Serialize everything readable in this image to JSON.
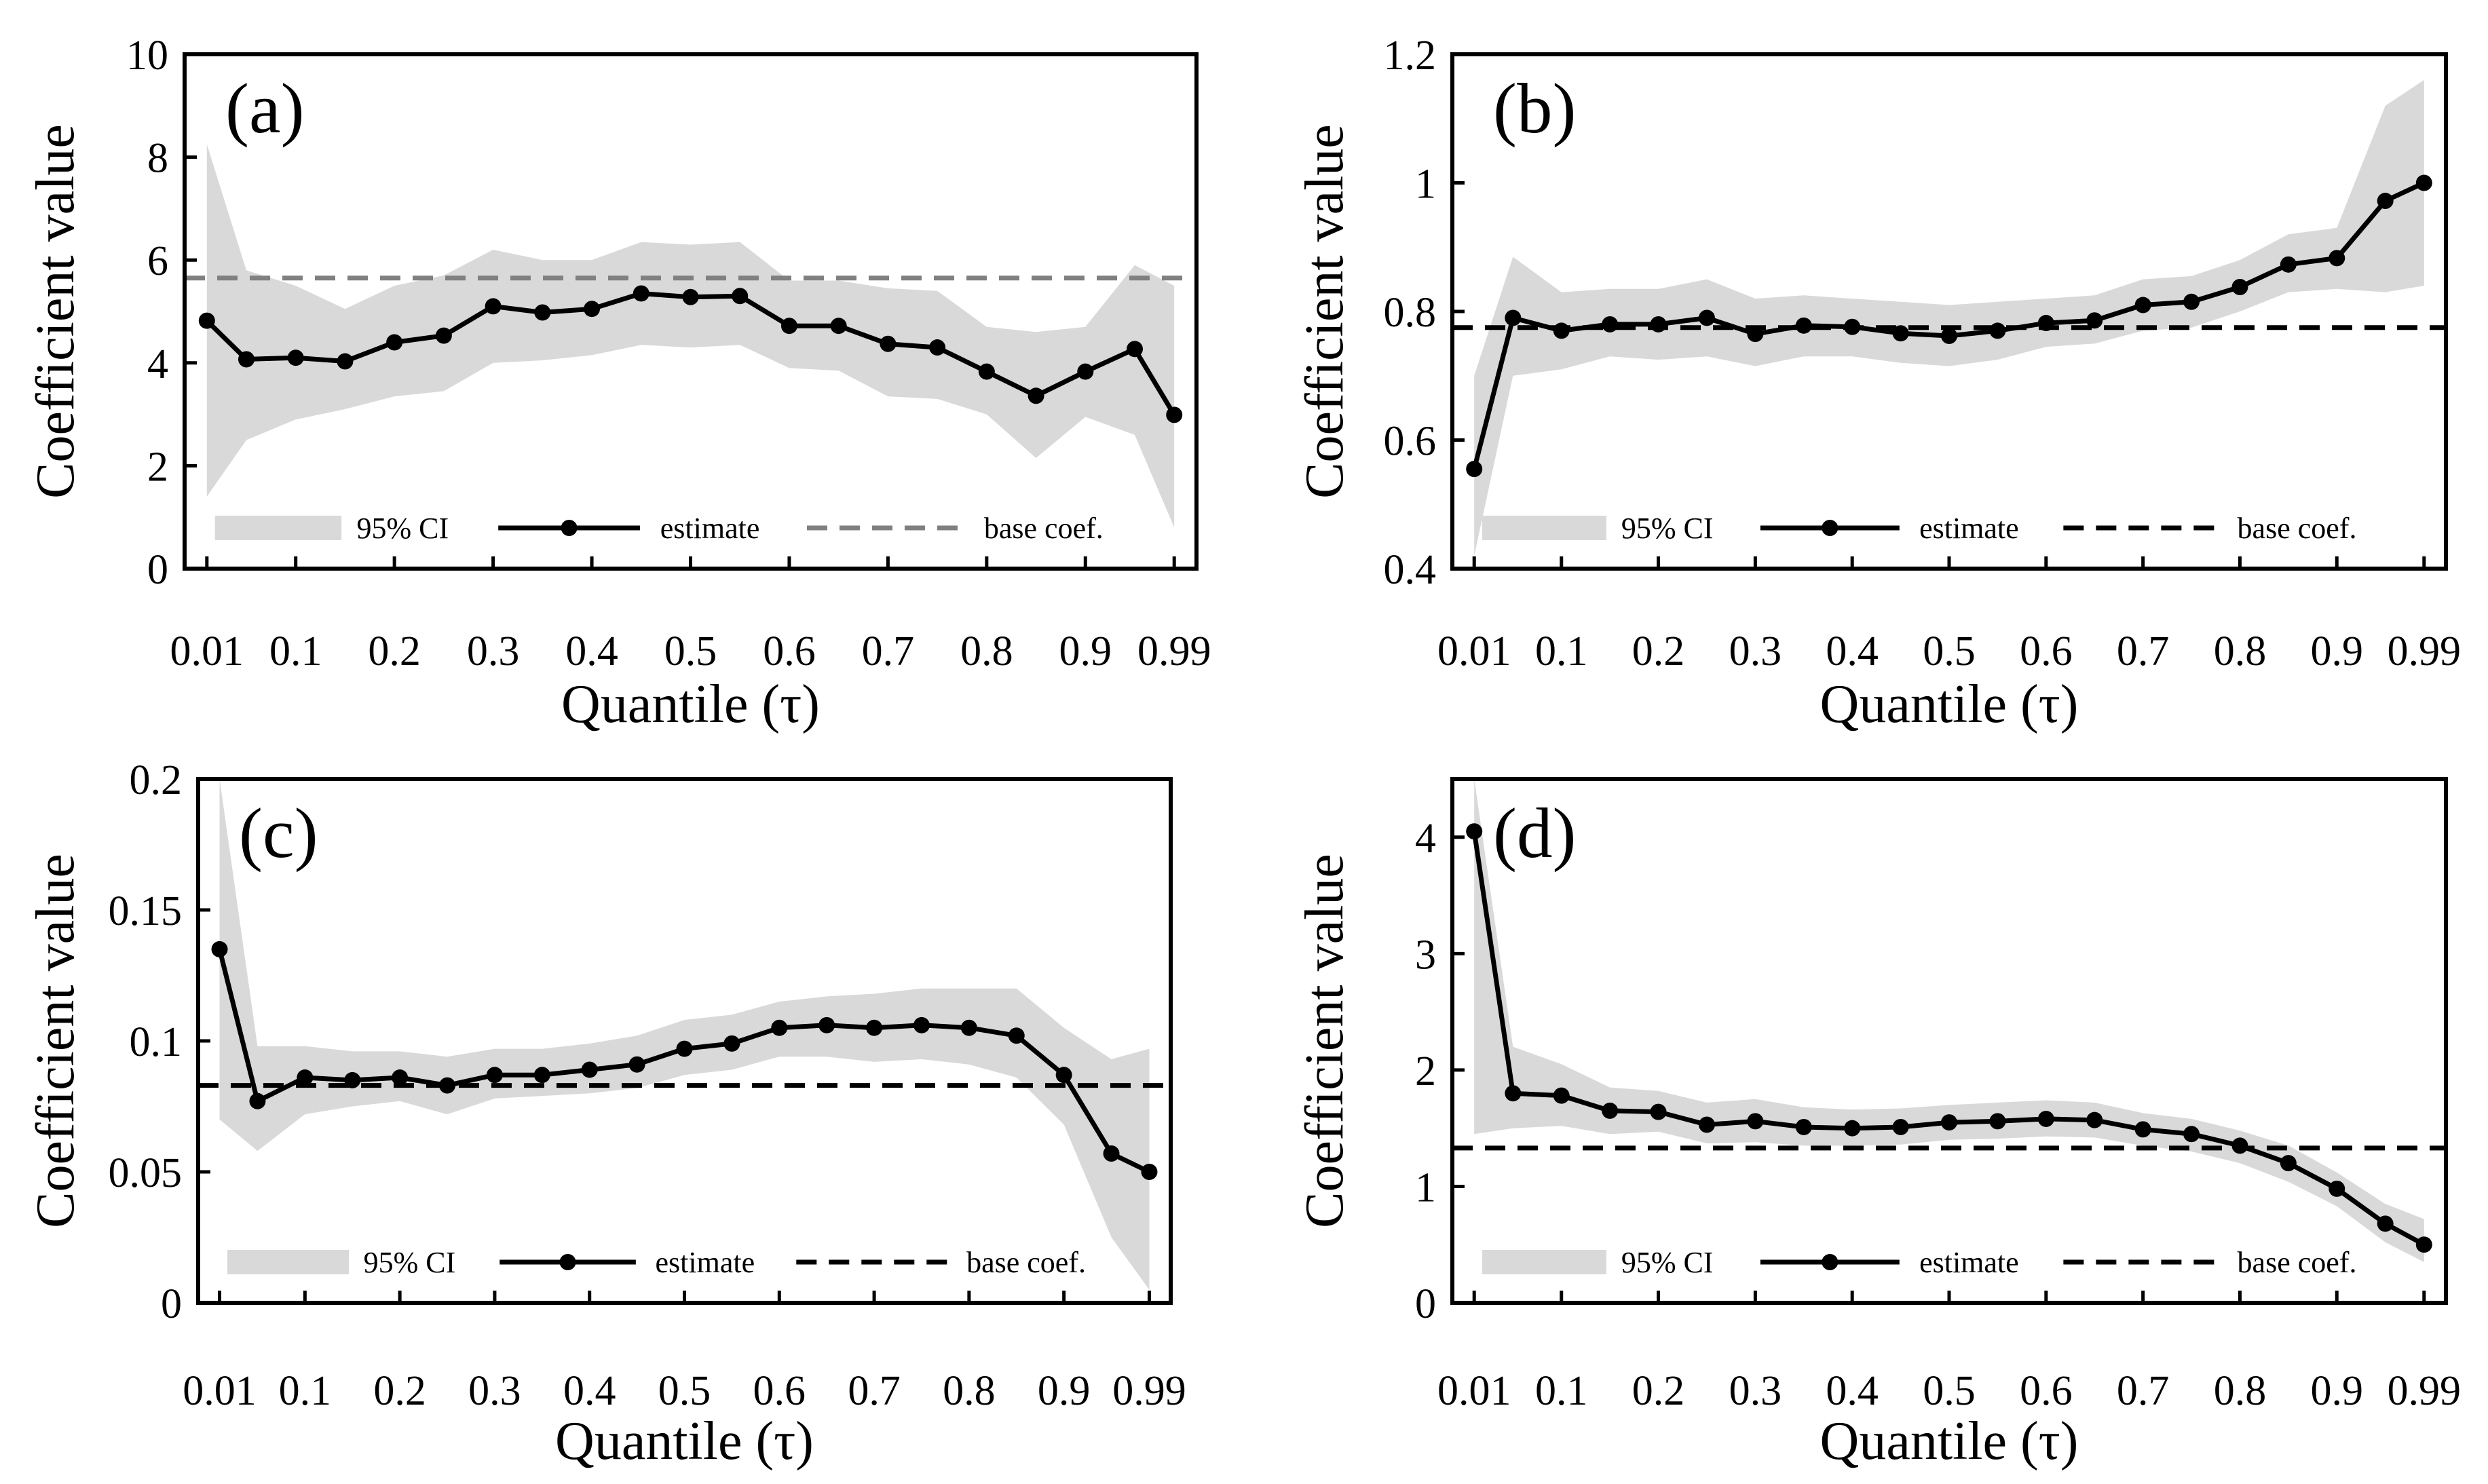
{
  "colors": {
    "ci_band": "#d9d9d9",
    "estimate": "#000000",
    "base_black": "#000000",
    "base_grey": "#808080"
  },
  "chart_data": [
    {
      "type": "line",
      "panel_label": "(a)",
      "ylabel": "Coefficient value",
      "xlabel": "Quantile (τ)",
      "x": [
        0.01,
        0.05,
        0.1,
        0.15,
        0.2,
        0.25,
        0.3,
        0.35,
        0.4,
        0.45,
        0.5,
        0.55,
        0.6,
        0.65,
        0.7,
        0.75,
        0.8,
        0.85,
        0.9,
        0.95,
        0.99
      ],
      "x_ticks": [
        0.01,
        0.1,
        0.2,
        0.3,
        0.4,
        0.5,
        0.6,
        0.7,
        0.8,
        0.9,
        0.99
      ],
      "x_tick_labels": [
        "0.01",
        "0.1",
        "0.2",
        "0.3",
        "0.4",
        "0.5",
        "0.6",
        "0.7",
        "0.8",
        "0.9",
        "0.99"
      ],
      "ylim": [
        0,
        10
      ],
      "y_ticks": [
        0,
        2,
        4,
        6,
        8,
        10
      ],
      "y_tick_labels": [
        "0",
        "2",
        "4",
        "6",
        "8",
        "10"
      ],
      "estimate": [
        4.82,
        4.07,
        4.1,
        4.03,
        4.4,
        4.53,
        5.1,
        4.98,
        5.05,
        5.35,
        5.28,
        5.3,
        4.72,
        4.72,
        4.37,
        4.3,
        3.83,
        3.36,
        3.83,
        4.27,
        2.99
      ],
      "ci_upper": [
        8.25,
        5.8,
        5.5,
        5.05,
        5.5,
        5.7,
        6.2,
        6.0,
        6.0,
        6.35,
        6.3,
        6.35,
        5.6,
        5.6,
        5.45,
        5.4,
        4.7,
        4.6,
        4.7,
        5.9,
        5.5
      ],
      "ci_lower": [
        1.4,
        2.5,
        2.9,
        3.1,
        3.35,
        3.45,
        4.0,
        4.05,
        4.15,
        4.35,
        4.3,
        4.35,
        3.9,
        3.85,
        3.35,
        3.3,
        3.0,
        2.15,
        2.95,
        2.6,
        0.8
      ],
      "base_coef": 5.65,
      "base_line_style": "grey",
      "legend": {
        "ci": "95% CI",
        "estimate": "estimate",
        "base": "base coef."
      }
    },
    {
      "type": "line",
      "panel_label": "(b)",
      "ylabel": "Coefficient value",
      "xlabel": "Quantile (τ)",
      "x": [
        0.01,
        0.05,
        0.1,
        0.15,
        0.2,
        0.25,
        0.3,
        0.35,
        0.4,
        0.45,
        0.5,
        0.55,
        0.6,
        0.65,
        0.7,
        0.75,
        0.8,
        0.85,
        0.9,
        0.95,
        0.99
      ],
      "x_ticks": [
        0.01,
        0.1,
        0.2,
        0.3,
        0.4,
        0.5,
        0.6,
        0.7,
        0.8,
        0.9,
        0.99
      ],
      "x_tick_labels": [
        "0.01",
        "0.1",
        "0.2",
        "0.3",
        "0.4",
        "0.5",
        "0.6",
        "0.7",
        "0.8",
        "0.9",
        "0.99"
      ],
      "ylim": [
        0.4,
        1.2
      ],
      "y_ticks": [
        0.4,
        0.6,
        0.8,
        1.0,
        1.2
      ],
      "y_tick_labels": [
        "0.4",
        "0.6",
        "0.8",
        "1",
        "1.2"
      ],
      "estimate": [
        0.555,
        0.79,
        0.77,
        0.78,
        0.78,
        0.79,
        0.765,
        0.778,
        0.776,
        0.766,
        0.762,
        0.77,
        0.782,
        0.786,
        0.81,
        0.815,
        0.838,
        0.873,
        0.883,
        0.972,
        1.0
      ],
      "ci_upper": [
        0.7,
        0.885,
        0.83,
        0.835,
        0.835,
        0.85,
        0.82,
        0.825,
        0.82,
        0.815,
        0.81,
        0.815,
        0.82,
        0.825,
        0.85,
        0.855,
        0.88,
        0.92,
        0.93,
        1.12,
        1.16
      ],
      "ci_lower": [
        0.42,
        0.7,
        0.71,
        0.73,
        0.725,
        0.73,
        0.715,
        0.73,
        0.73,
        0.72,
        0.715,
        0.725,
        0.745,
        0.75,
        0.77,
        0.775,
        0.8,
        0.83,
        0.835,
        0.83,
        0.84
      ],
      "base_coef": 0.775,
      "base_line_style": "black",
      "legend": {
        "ci": "95% CI",
        "estimate": "estimate",
        "base": "base coef."
      }
    },
    {
      "type": "line",
      "panel_label": "(c)",
      "ylabel": "Coefficient value",
      "xlabel": "Quantile (τ)",
      "x": [
        0.01,
        0.05,
        0.1,
        0.15,
        0.2,
        0.25,
        0.3,
        0.35,
        0.4,
        0.45,
        0.5,
        0.55,
        0.6,
        0.65,
        0.7,
        0.75,
        0.8,
        0.85,
        0.9,
        0.95,
        0.99
      ],
      "x_ticks": [
        0.01,
        0.1,
        0.2,
        0.3,
        0.4,
        0.5,
        0.6,
        0.7,
        0.8,
        0.9,
        0.99
      ],
      "x_tick_labels": [
        "0.01",
        "0.1",
        "0.2",
        "0.3",
        "0.4",
        "0.5",
        "0.6",
        "0.7",
        "0.8",
        "0.9",
        "0.99"
      ],
      "ylim": [
        0,
        0.2
      ],
      "y_ticks": [
        0,
        0.05,
        0.1,
        0.15,
        0.2
      ],
      "y_tick_labels": [
        "0",
        "0.05",
        "0.1",
        "0.15",
        "0.2"
      ],
      "estimate": [
        0.135,
        0.077,
        0.086,
        0.085,
        0.086,
        0.083,
        0.087,
        0.087,
        0.089,
        0.091,
        0.097,
        0.099,
        0.105,
        0.106,
        0.105,
        0.106,
        0.105,
        0.102,
        0.087,
        0.057,
        0.05
      ],
      "ci_upper": [
        0.2,
        0.098,
        0.098,
        0.096,
        0.096,
        0.094,
        0.097,
        0.097,
        0.099,
        0.102,
        0.108,
        0.11,
        0.115,
        0.117,
        0.118,
        0.12,
        0.12,
        0.12,
        0.105,
        0.093,
        0.097
      ],
      "ci_lower": [
        0.07,
        0.058,
        0.072,
        0.075,
        0.077,
        0.072,
        0.078,
        0.079,
        0.08,
        0.082,
        0.087,
        0.089,
        0.094,
        0.094,
        0.092,
        0.093,
        0.091,
        0.086,
        0.068,
        0.025,
        0.005
      ],
      "base_coef": 0.083,
      "base_line_style": "black",
      "legend": {
        "ci": "95% CI",
        "estimate": "estimate",
        "base": "base coef."
      }
    },
    {
      "type": "line",
      "panel_label": "(d)",
      "ylabel": "Coefficient value",
      "xlabel": "Quantile (τ)",
      "x": [
        0.01,
        0.05,
        0.1,
        0.15,
        0.2,
        0.25,
        0.3,
        0.35,
        0.4,
        0.45,
        0.5,
        0.55,
        0.6,
        0.65,
        0.7,
        0.75,
        0.8,
        0.85,
        0.9,
        0.95,
        0.99
      ],
      "x_ticks": [
        0.01,
        0.1,
        0.2,
        0.3,
        0.4,
        0.5,
        0.6,
        0.7,
        0.8,
        0.9,
        0.99
      ],
      "x_tick_labels": [
        "0.01",
        "0.1",
        "0.2",
        "0.3",
        "0.4",
        "0.5",
        "0.6",
        "0.7",
        "0.8",
        "0.9",
        "0.99"
      ],
      "ylim": [
        0,
        4.5
      ],
      "y_ticks": [
        0,
        1,
        2,
        3,
        4
      ],
      "y_tick_labels": [
        "0",
        "1",
        "2",
        "3",
        "4"
      ],
      "estimate": [
        4.05,
        1.8,
        1.78,
        1.65,
        1.64,
        1.53,
        1.56,
        1.51,
        1.5,
        1.51,
        1.55,
        1.56,
        1.58,
        1.57,
        1.49,
        1.45,
        1.35,
        1.2,
        0.98,
        0.68,
        0.5
      ],
      "ci_upper": [
        4.5,
        2.2,
        2.05,
        1.85,
        1.82,
        1.72,
        1.75,
        1.68,
        1.66,
        1.67,
        1.7,
        1.72,
        1.74,
        1.72,
        1.63,
        1.58,
        1.48,
        1.35,
        1.12,
        0.85,
        0.72
      ],
      "ci_lower": [
        1.45,
        1.5,
        1.52,
        1.45,
        1.47,
        1.37,
        1.38,
        1.35,
        1.35,
        1.36,
        1.4,
        1.41,
        1.43,
        1.42,
        1.35,
        1.3,
        1.2,
        1.04,
        0.83,
        0.52,
        0.35
      ],
      "base_coef": 1.33,
      "base_line_style": "black",
      "legend": {
        "ci": "95% CI",
        "estimate": "estimate",
        "base": "base coef."
      }
    }
  ]
}
